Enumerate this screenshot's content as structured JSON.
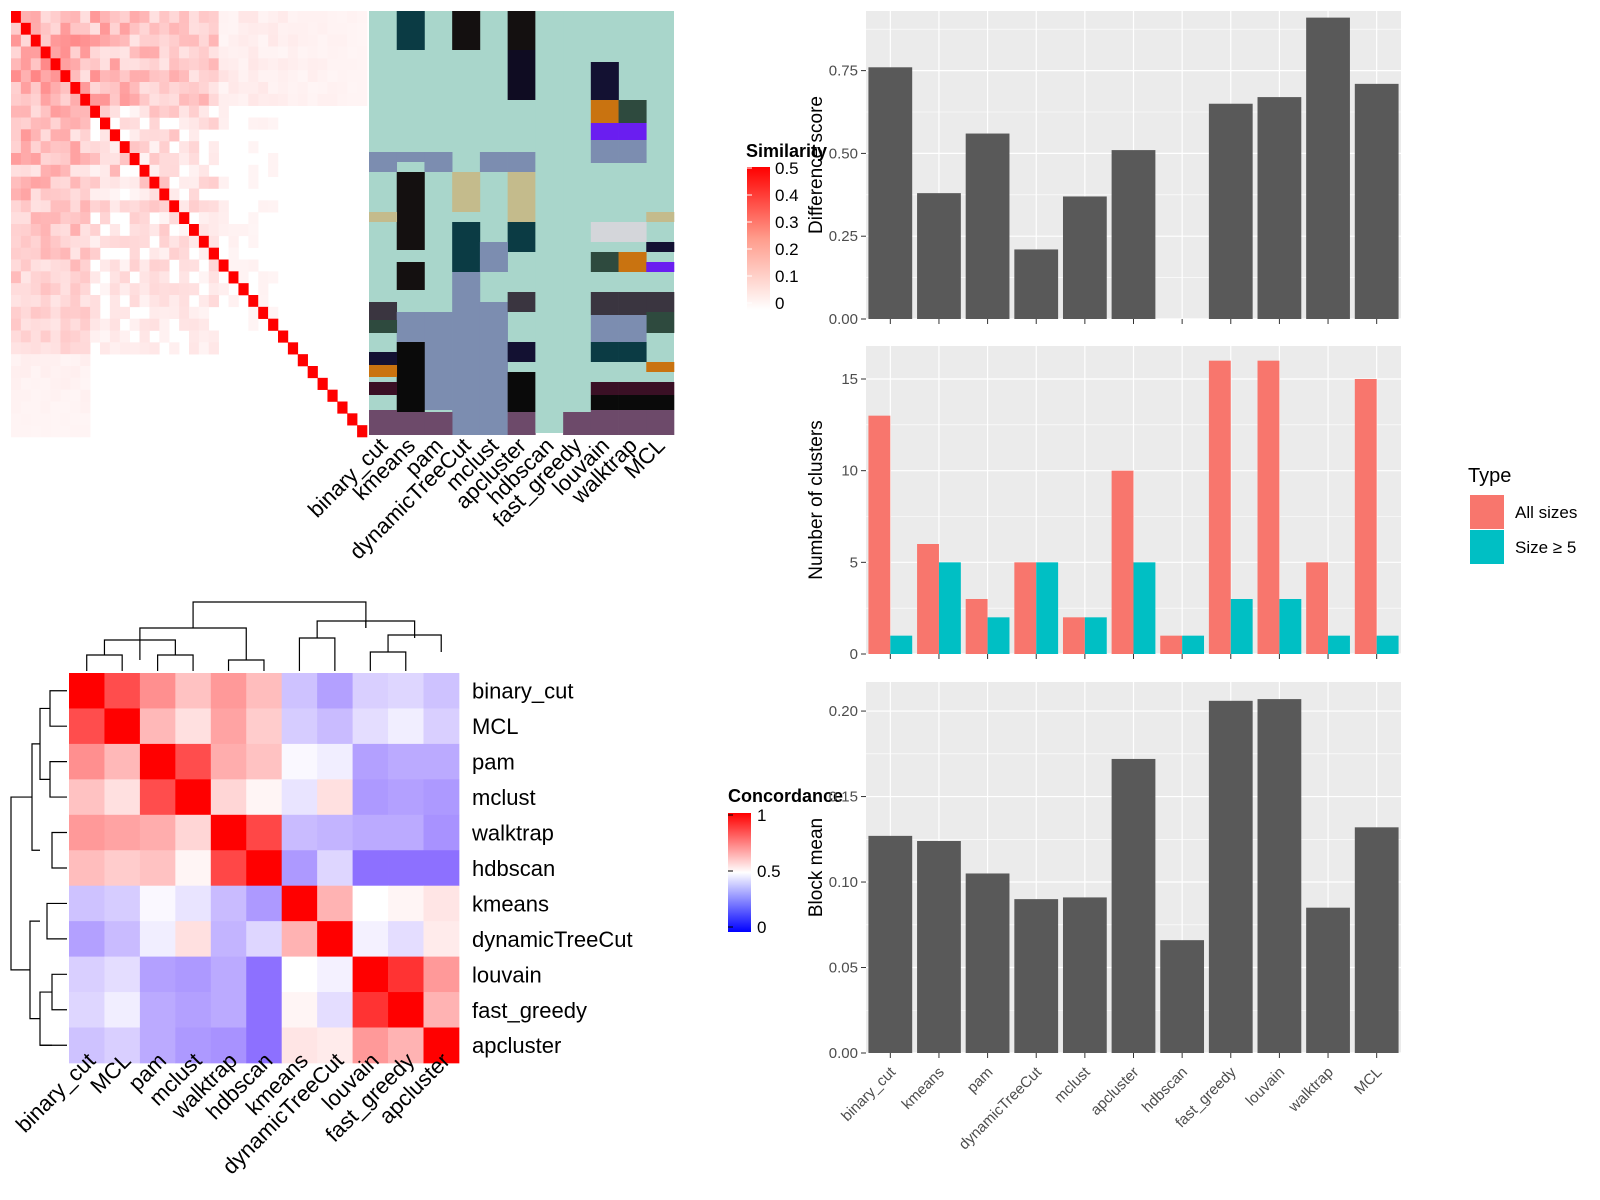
{
  "methods": [
    "binary_cut",
    "kmeans",
    "pam",
    "dynamicTreeCut",
    "mclust",
    "apcluster",
    "hdbscan",
    "fast_greedy",
    "louvain",
    "walktrap",
    "MCL"
  ],
  "similarity_legend": {
    "title": "Similarity",
    "ticks": [
      "0.5",
      "0.4",
      "0.3",
      "0.2",
      "0.1",
      "0"
    ]
  },
  "concordance_legend": {
    "title": "Concordance",
    "ticks": [
      "1",
      "0.5",
      "0"
    ]
  },
  "type_legend": {
    "title": "Type",
    "items": [
      "All sizes",
      "Size ≥ 5"
    ]
  },
  "colors": {
    "all_sizes": "#f8766d",
    "size_ge5": "#00bfc4",
    "bar": "#595959",
    "panel": "#ebebeb",
    "high": "#ff0000",
    "mid": "#ffffff",
    "low": "#0000ff"
  },
  "chart_data": [
    {
      "type": "bar",
      "categories": [
        "binary_cut",
        "kmeans",
        "pam",
        "dynamicTreeCut",
        "mclust",
        "apcluster",
        "hdbscan",
        "fast_greedy",
        "louvain",
        "walktrap",
        "MCL"
      ],
      "values": [
        0.76,
        0.38,
        0.56,
        0.21,
        0.37,
        0.51,
        0,
        0.65,
        0.67,
        0.91,
        0.71
      ],
      "ylabel": "Difference score",
      "ylim": [
        0,
        0.93
      ],
      "yticks": [
        "0.00",
        "0.25",
        "0.50",
        "0.75"
      ],
      "grid": true
    },
    {
      "type": "bar",
      "categories": [
        "binary_cut",
        "kmeans",
        "pam",
        "dynamicTreeCut",
        "mclust",
        "apcluster",
        "hdbscan",
        "fast_greedy",
        "louvain",
        "walktrap",
        "MCL"
      ],
      "series": [
        {
          "name": "All sizes",
          "values": [
            13,
            6,
            3,
            5,
            2,
            10,
            1,
            16,
            16,
            5,
            15
          ]
        },
        {
          "name": "Size ≥ 5",
          "values": [
            1,
            5,
            2,
            5,
            2,
            5,
            1,
            3,
            3,
            1,
            1
          ]
        }
      ],
      "ylabel": "Number of clusters",
      "ylim": [
        0,
        16.8
      ],
      "yticks": [
        "0",
        "5",
        "10",
        "15"
      ],
      "legend": "right",
      "grid": true
    },
    {
      "type": "bar",
      "categories": [
        "binary_cut",
        "kmeans",
        "pam",
        "dynamicTreeCut",
        "mclust",
        "apcluster",
        "hdbscan",
        "fast_greedy",
        "louvain",
        "walktrap",
        "MCL"
      ],
      "values": [
        0.127,
        0.124,
        0.105,
        0.09,
        0.091,
        0.172,
        0.066,
        0.206,
        0.207,
        0.085,
        0.132
      ],
      "ylabel": "Block mean",
      "ylim": [
        0,
        0.217
      ],
      "yticks": [
        "0.00",
        "0.05",
        "0.10",
        "0.15",
        "0.20"
      ],
      "grid": true
    },
    {
      "type": "heatmap",
      "row_labels": [
        "binary_cut",
        "MCL",
        "pam",
        "mclust",
        "walktrap",
        "hdbscan",
        "kmeans",
        "dynamicTreeCut",
        "louvain",
        "fast_greedy",
        "apcluster"
      ],
      "col_labels": [
        "binary_cut",
        "MCL",
        "pam",
        "mclust",
        "walktrap",
        "hdbscan",
        "kmeans",
        "dynamicTreeCut",
        "louvain",
        "fast_greedy",
        "apcluster"
      ],
      "values": [
        [
          1.0,
          0.85,
          0.72,
          0.62,
          0.7,
          0.63,
          0.32,
          0.22,
          0.36,
          0.38,
          0.32
        ],
        [
          0.85,
          1.0,
          0.64,
          0.56,
          0.68,
          0.6,
          0.35,
          0.3,
          0.4,
          0.45,
          0.36
        ],
        [
          0.72,
          0.64,
          1.0,
          0.85,
          0.66,
          0.62,
          0.48,
          0.45,
          0.22,
          0.25,
          0.25
        ],
        [
          0.62,
          0.56,
          0.85,
          1.0,
          0.58,
          0.52,
          0.42,
          0.56,
          0.2,
          0.22,
          0.2
        ],
        [
          0.7,
          0.68,
          0.66,
          0.58,
          1.0,
          0.86,
          0.3,
          0.28,
          0.25,
          0.25,
          0.18
        ],
        [
          0.63,
          0.6,
          0.62,
          0.52,
          0.86,
          1.0,
          0.2,
          0.38,
          0.08,
          0.08,
          0.08
        ],
        [
          0.32,
          0.35,
          0.48,
          0.42,
          0.3,
          0.2,
          1.0,
          0.65,
          0.5,
          0.52,
          0.55
        ],
        [
          0.22,
          0.3,
          0.45,
          0.56,
          0.28,
          0.38,
          0.65,
          1.0,
          0.46,
          0.4,
          0.54
        ],
        [
          0.36,
          0.4,
          0.22,
          0.2,
          0.25,
          0.08,
          0.5,
          0.46,
          1.0,
          0.9,
          0.7
        ],
        [
          0.38,
          0.45,
          0.25,
          0.22,
          0.25,
          0.08,
          0.52,
          0.4,
          0.9,
          1.0,
          0.65
        ],
        [
          0.32,
          0.36,
          0.25,
          0.2,
          0.18,
          0.08,
          0.55,
          0.54,
          0.7,
          0.65,
          1.0
        ]
      ]
    },
    {
      "type": "heatmap",
      "col_labels": [
        "binary_cut",
        "kmeans",
        "pam",
        "dynamicTreeCut",
        "mclust",
        "apcluster",
        "hdbscan",
        "fast_greedy",
        "louvain",
        "walktrap",
        "MCL"
      ]
    }
  ]
}
